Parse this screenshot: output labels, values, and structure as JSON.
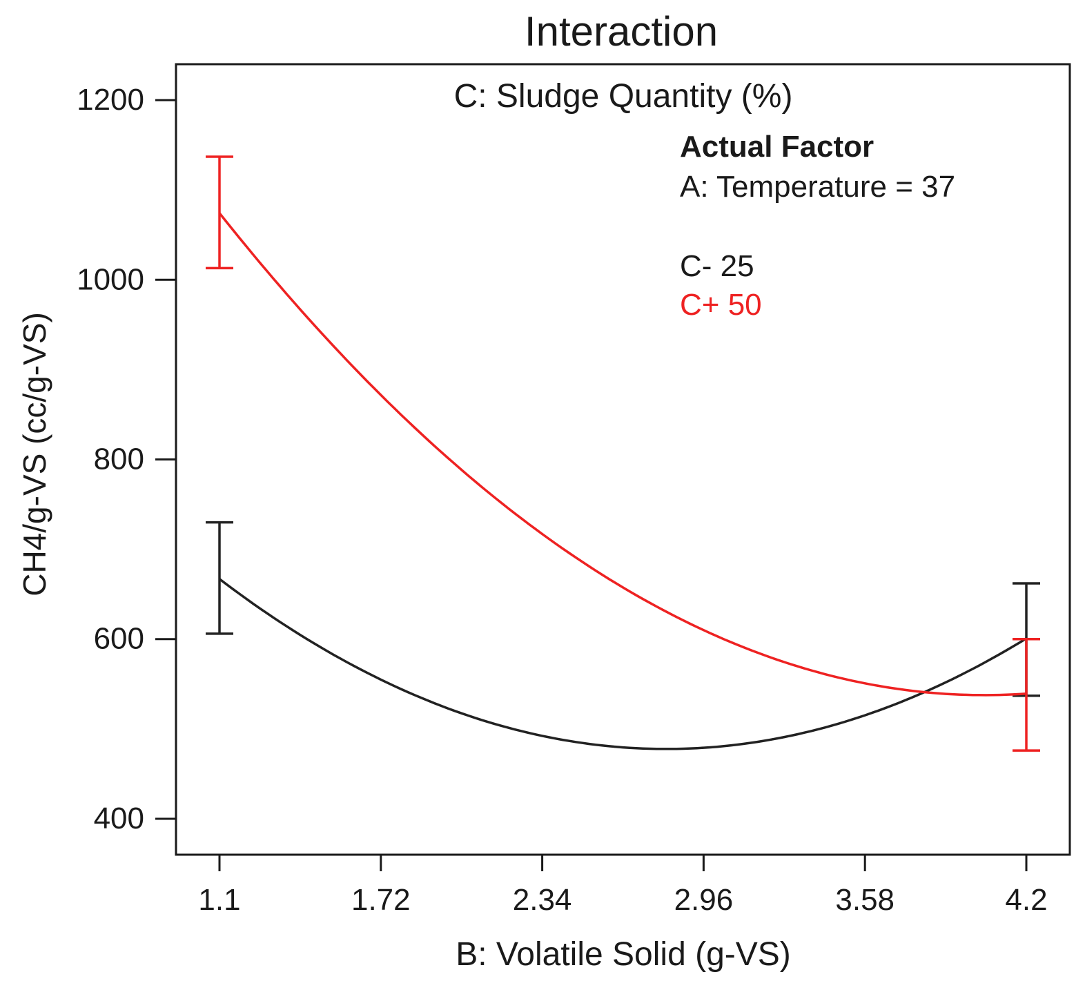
{
  "chart_data": {
    "type": "line",
    "title": "Interaction",
    "subtitle": "C: Sludge Quantity (%)",
    "xlabel": "B: Volatile Solid (g-VS)",
    "ylabel": "CH4/g-VS (cc/g-VS)",
    "xlim": [
      1.1,
      4.2
    ],
    "ylim": [
      360,
      1240
    ],
    "x_ticks": [
      "1.1",
      "1.72",
      "2.34",
      "2.96",
      "3.58",
      "4.2"
    ],
    "x_tick_values": [
      1.1,
      1.72,
      2.34,
      2.96,
      3.58,
      4.2
    ],
    "y_ticks": [
      "400",
      "600",
      "800",
      "1000",
      "1200"
    ],
    "y_tick_values": [
      400,
      600,
      800,
      1000,
      1200
    ],
    "annotation": {
      "heading": "Actual Factor",
      "line": "A: Temperature = 37"
    },
    "series": [
      {
        "name": "C- 25",
        "color": "#222222",
        "x": [
          1.1,
          1.72,
          2.34,
          2.96,
          3.58,
          4.2
        ],
        "values": [
          668,
          553,
          492,
          480,
          516,
          600
        ],
        "error_bars": [
          {
            "x": 1.1,
            "low": 606,
            "high": 730
          },
          {
            "x": 4.2,
            "low": 537,
            "high": 662
          }
        ]
      },
      {
        "name": "C+ 50",
        "color": "#ee2222",
        "x": [
          1.1,
          1.72,
          2.34,
          2.96,
          3.58,
          4.2
        ],
        "values": [
          1075,
          871,
          716,
          610,
          553,
          538
        ],
        "error_bars": [
          {
            "x": 1.1,
            "low": 1013,
            "high": 1137
          },
          {
            "x": 4.2,
            "low": 476,
            "high": 600
          }
        ]
      }
    ]
  }
}
